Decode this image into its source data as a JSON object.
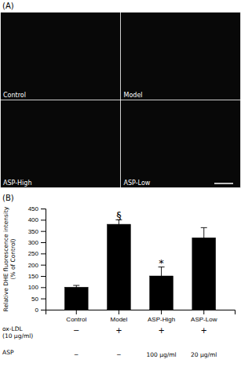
{
  "chart_data": {
    "type": "bar",
    "panel_labels": [
      "(A)",
      "(B)"
    ],
    "categories": [
      "Control",
      "Model",
      "ASP-High",
      "ASP-Low"
    ],
    "values": [
      100,
      380,
      150,
      320
    ],
    "errors": [
      8,
      20,
      40,
      45
    ],
    "color": "#000000",
    "ylim": [
      0,
      450
    ],
    "yticks": [
      0,
      50,
      100,
      150,
      200,
      250,
      300,
      350,
      400,
      450
    ],
    "ylabel": "Relative DHE fluorescence intensity\n(% of Control)",
    "grid": false,
    "annotations": [
      {
        "text": "§",
        "category": "Model",
        "y": 403
      },
      {
        "text": "*",
        "category": "ASP-High",
        "y": 193
      }
    ],
    "table_rows": [
      {
        "label": "ox-LDL\n(10 μg/ml)",
        "values": [
          "−",
          "+",
          "+",
          "+"
        ]
      },
      {
        "label": "ASP",
        "values": [
          "−",
          "−",
          "100 μg/ml",
          "20 μg/ml"
        ]
      }
    ]
  }
}
